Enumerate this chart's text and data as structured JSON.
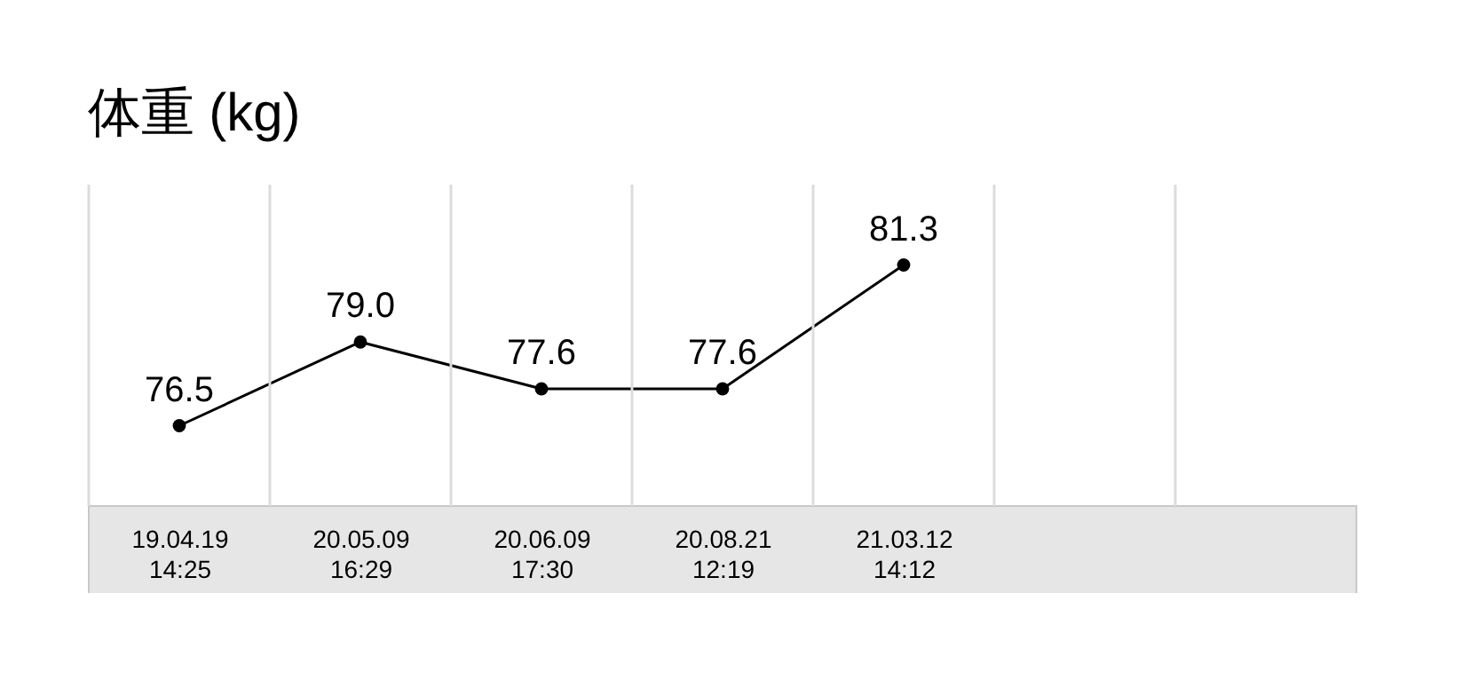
{
  "chart_data": {
    "type": "line",
    "title": "体重 (kg)",
    "categories": [
      "19.04.19 14:25",
      "20.05.09 16:29",
      "20.06.09 17:30",
      "20.08.21 12:19",
      "21.03.12 14:12",
      null,
      null
    ],
    "values": [
      76.5,
      79.0,
      77.6,
      77.6,
      81.3,
      null,
      null
    ],
    "value_labels": [
      "76.5",
      "79.0",
      "77.6",
      "77.6",
      "81.3",
      null,
      null
    ],
    "color": "#000000",
    "marker": "circle",
    "grid": "x"
  }
}
